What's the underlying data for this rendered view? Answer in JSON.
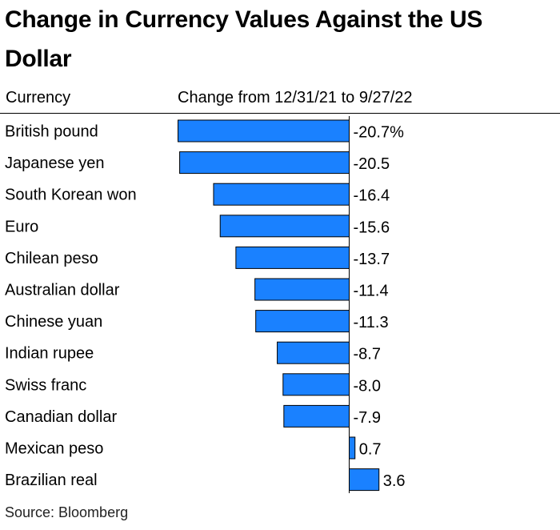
{
  "title": "Change in Currency Values Against the US Dollar",
  "source": "Source: Bloomberg",
  "chart_data": {
    "type": "bar",
    "orientation": "horizontal",
    "column_headers": [
      "Currency",
      "Change from 12/31/21 to 9/27/22"
    ],
    "categories": [
      "British pound",
      "Japanese yen",
      "South Korean won",
      "Euro",
      "Chilean peso",
      "Australian dollar",
      "Chinese yuan",
      "Indian rupee",
      "Swiss franc",
      "Canadian dollar",
      "Mexican peso",
      "Brazilian real"
    ],
    "values": [
      -20.7,
      -20.5,
      -16.4,
      -15.6,
      -13.7,
      -11.4,
      -11.3,
      -8.7,
      -8.0,
      -7.9,
      0.7,
      3.6
    ],
    "value_labels": [
      "-20.7%",
      "-20.5",
      "-16.4",
      "-15.6",
      "-13.7",
      "-11.4",
      "-11.3",
      "-8.7",
      "-8.0",
      "-7.9",
      "0.7",
      "3.6"
    ],
    "bar_color": "#1a81ff",
    "bar_stroke": "#000000",
    "grid": false
  }
}
